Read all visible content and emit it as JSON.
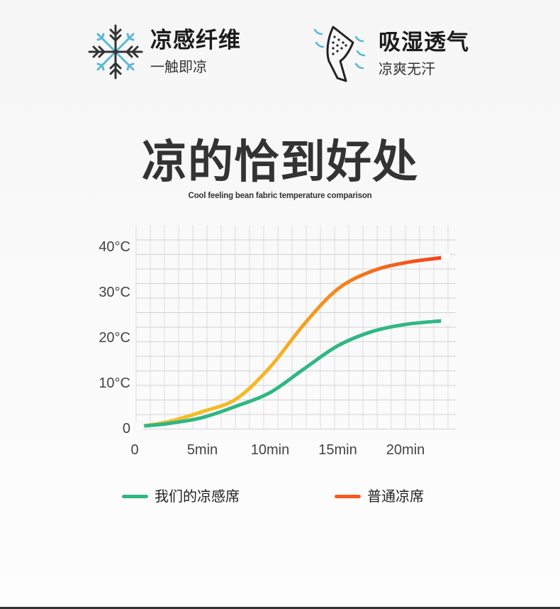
{
  "features": [
    {
      "icon": "snowflake-icon",
      "title": "凉感纤维",
      "subtitle": "一触即凉"
    },
    {
      "icon": "breathable-fabric-icon",
      "title": "吸湿透气",
      "subtitle": "凉爽无汗"
    }
  ],
  "heading": "凉的恰到好处",
  "subheading": "Cool feeling bean fabric temperature comparison",
  "colors": {
    "green": "#2fb784",
    "orange_start": "#f4c12a",
    "orange_mid": "#f5901f",
    "orange_end": "#f0421a",
    "icon_blue": "#5bb7d3"
  },
  "chart_data": {
    "type": "line",
    "title": "",
    "xlabel": "",
    "ylabel": "",
    "x_ticks": [
      "0",
      "5min",
      "10min",
      "15min",
      "20min"
    ],
    "y_ticks": [
      "0",
      "10°C",
      "20°C",
      "30°C",
      "40°C"
    ],
    "xlim": [
      0,
      23.5
    ],
    "ylim": [
      0,
      41
    ],
    "grid": true,
    "legend_position": "bottom",
    "series": [
      {
        "name": "我们的凉感席",
        "color": "#2fb784",
        "x": [
          0.5,
          2.5,
          5,
          7.5,
          10,
          12.5,
          15,
          17.5,
          20,
          22.7
        ],
        "y": [
          0.4,
          1.0,
          2.3,
          4.8,
          7.8,
          13.0,
          18.1,
          21.2,
          22.8,
          23.6
        ]
      },
      {
        "name": "普通凉席",
        "color": "#f0421a",
        "x": [
          0.5,
          2.5,
          5,
          7.5,
          10,
          12.5,
          15,
          17.5,
          20,
          22.7
        ],
        "y": [
          0.4,
          1.4,
          3.6,
          6.4,
          13.4,
          22.8,
          30.6,
          34.5,
          36.4,
          37.5
        ]
      }
    ]
  }
}
